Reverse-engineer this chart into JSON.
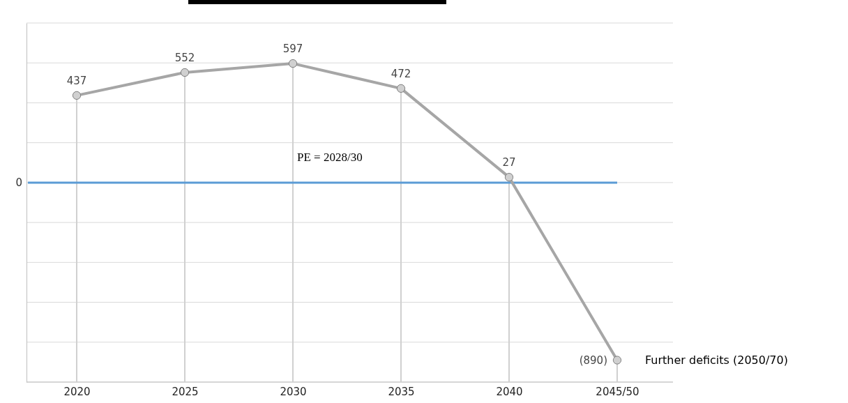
{
  "chart_data": {
    "type": "line",
    "categories": [
      "2020",
      "2025",
      "2030",
      "2035",
      "2040",
      "2045/50"
    ],
    "series": [
      {
        "color": "#a6a6a6",
        "values": [
          437,
          552,
          597,
          472,
          27,
          -890
        ],
        "value_labels": [
          "437",
          "552",
          "597",
          "472",
          "27",
          "(890)"
        ]
      }
    ],
    "marker": "circle",
    "grid": true,
    "ylim": [
      -1000,
      800
    ],
    "ref_lines": [
      {
        "axis": "y",
        "value": 0,
        "label": "0",
        "color": "#5b9bd5"
      }
    ],
    "annotations": [
      "PE = 2028/30",
      "Further deficits (2050/70)"
    ]
  }
}
